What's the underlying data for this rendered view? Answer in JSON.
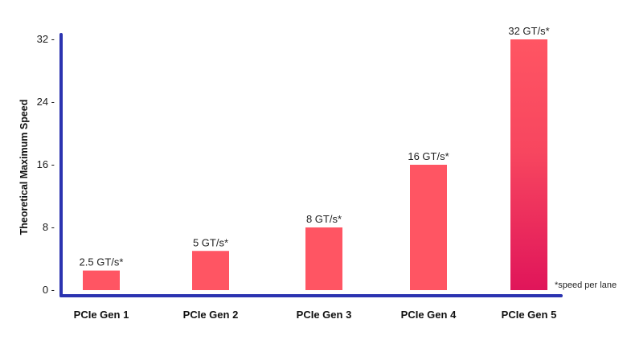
{
  "chart_data": {
    "type": "bar",
    "categories": [
      "PCIe Gen 1",
      "PCIe Gen 2",
      "PCIe Gen 3",
      "PCIe Gen 4",
      "PCIe Gen 5"
    ],
    "values": [
      2.5,
      5,
      8,
      16,
      32
    ],
    "data_labels": [
      "2.5 GT/s*",
      "5 GT/s*",
      "8 GT/s*",
      "16 GT/s*",
      "32 GT/s*"
    ],
    "ylabel": "Theoretical Maximum Speed",
    "xlabel": "",
    "y_ticks": [
      0,
      8,
      16,
      24,
      32
    ],
    "y_tick_labels": [
      "0 -",
      "8 -",
      "16 -",
      "24 -",
      "32 -"
    ],
    "ylim": [
      0,
      32
    ],
    "footnote": "*speed per lane",
    "grid": false,
    "colors": {
      "bar": "#ff5563",
      "bar_dark": "#e0155a",
      "axis": "#2b33b0"
    }
  }
}
